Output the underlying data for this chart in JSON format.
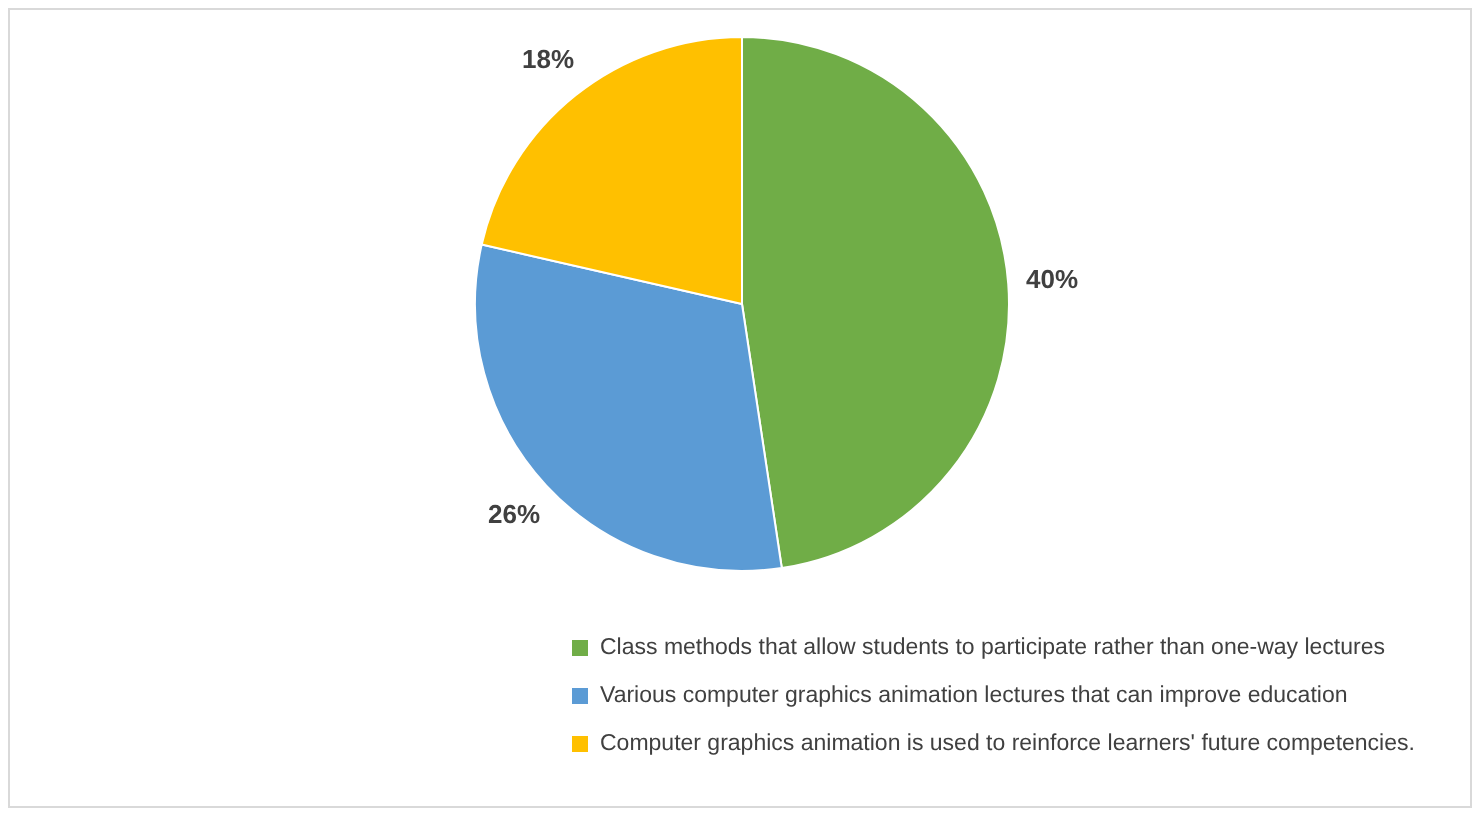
{
  "chart_data": {
    "type": "pie",
    "categories": [
      "Class methods that allow students to participate rather than one-way lectures",
      "Various computer graphics animation lectures that can improve education",
      "Computer graphics animation is used to reinforce learners' future competencies."
    ],
    "values": [
      40,
      26,
      18
    ],
    "value_labels": [
      "40%",
      "26%",
      "18%"
    ],
    "colors": [
      "#70ad47",
      "#5b9bd5",
      "#ffc000"
    ],
    "legend": "bottom"
  }
}
